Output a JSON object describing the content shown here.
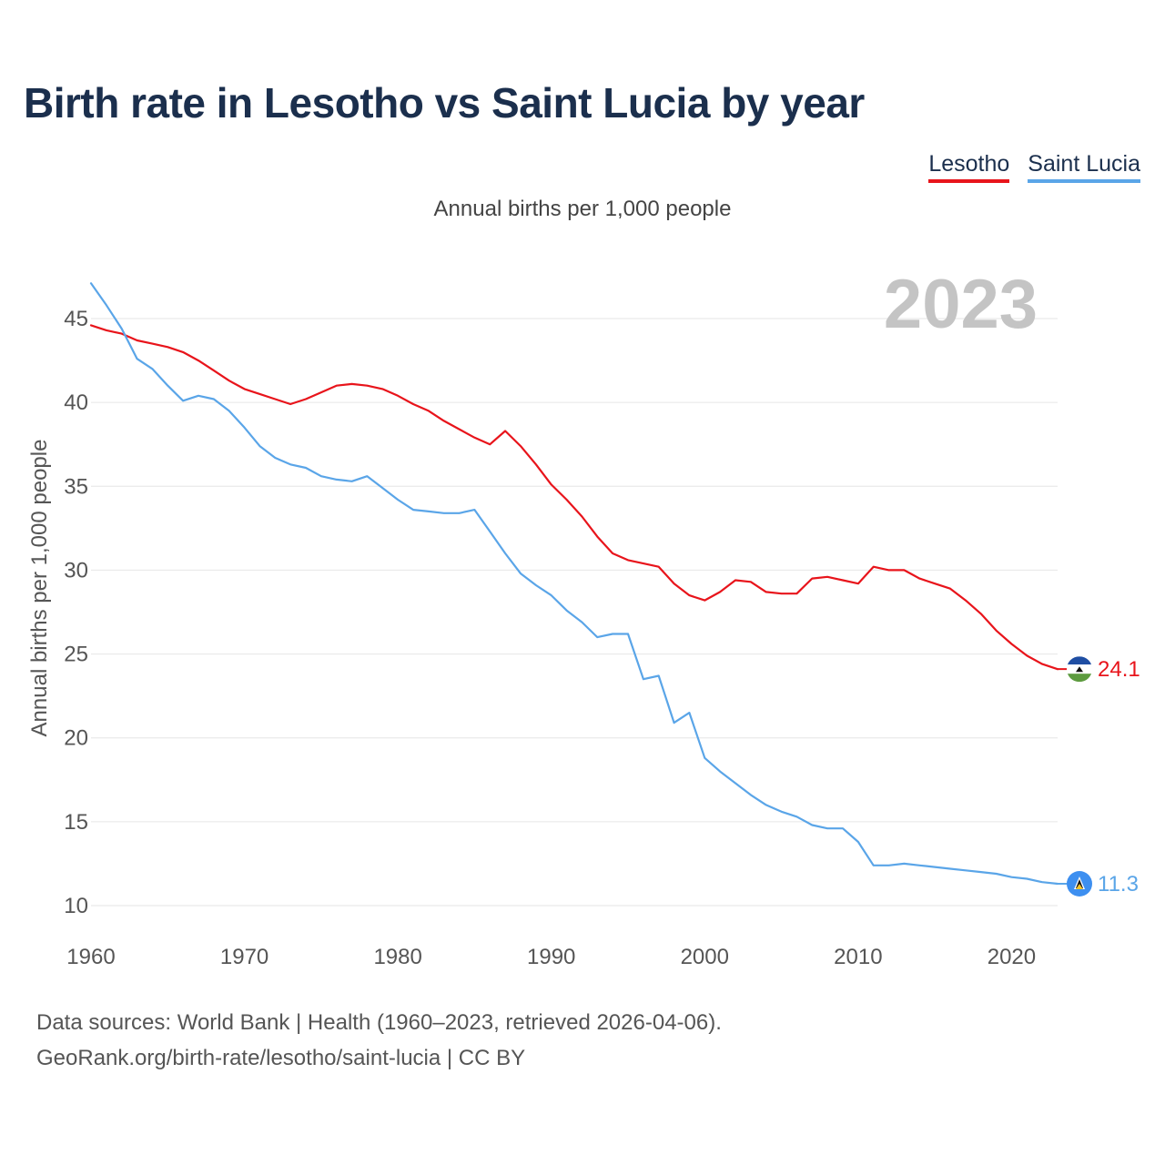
{
  "title": "Birth rate in Lesotho vs Saint Lucia by year",
  "legend": [
    {
      "label": "Lesotho",
      "color": "#e8141b"
    },
    {
      "label": "Saint Lucia",
      "color": "#5aa5e8"
    }
  ],
  "subtitle": "Annual births per 1,000 people",
  "year_watermark": "2023",
  "footer": {
    "line1": "Data sources: World Bank | Health (1960–2023, retrieved 2026-04-06).",
    "line2": "GeoRank.org/birth-rate/lesotho/saint-lucia | CC BY"
  },
  "chart_data": {
    "type": "line",
    "title": "Birth rate in Lesotho vs Saint Lucia by year",
    "xlabel": "",
    "ylabel": "Annual births per 1,000 people",
    "xlim": [
      1960,
      2023
    ],
    "ylim": [
      10,
      47.5
    ],
    "x_ticks": [
      1960,
      1970,
      1980,
      1990,
      2000,
      2010,
      2020
    ],
    "y_ticks": [
      10,
      15,
      20,
      25,
      30,
      35,
      40,
      45
    ],
    "grid": true,
    "x": [
      1960,
      1961,
      1962,
      1963,
      1964,
      1965,
      1966,
      1967,
      1968,
      1969,
      1970,
      1971,
      1972,
      1973,
      1974,
      1975,
      1976,
      1977,
      1978,
      1979,
      1980,
      1981,
      1982,
      1983,
      1984,
      1985,
      1986,
      1987,
      1988,
      1989,
      1990,
      1991,
      1992,
      1993,
      1994,
      1995,
      1996,
      1997,
      1998,
      1999,
      2000,
      2001,
      2002,
      2003,
      2004,
      2005,
      2006,
      2007,
      2008,
      2009,
      2010,
      2011,
      2012,
      2013,
      2014,
      2015,
      2016,
      2017,
      2018,
      2019,
      2020,
      2021,
      2022,
      2023
    ],
    "series": [
      {
        "name": "Lesotho",
        "color": "#e8141b",
        "end_label": "24.1",
        "values": [
          44.6,
          44.3,
          44.1,
          43.7,
          43.5,
          43.3,
          43.0,
          42.5,
          41.9,
          41.3,
          40.8,
          40.5,
          40.2,
          39.9,
          40.2,
          40.6,
          41.0,
          41.1,
          41.0,
          40.8,
          40.4,
          39.9,
          39.5,
          38.9,
          38.4,
          37.9,
          37.5,
          38.3,
          37.4,
          36.3,
          35.1,
          34.2,
          33.2,
          32.0,
          31.0,
          30.6,
          30.4,
          30.2,
          29.2,
          28.5,
          28.2,
          28.7,
          29.4,
          29.3,
          28.7,
          28.6,
          28.6,
          29.5,
          29.6,
          29.4,
          29.2,
          30.2,
          30.0,
          30.0,
          29.5,
          29.2,
          28.9,
          28.2,
          27.4,
          26.4,
          25.6,
          24.9,
          24.4,
          24.1
        ]
      },
      {
        "name": "Saint Lucia",
        "color": "#5aa5e8",
        "end_label": "11.3",
        "values": [
          47.1,
          45.8,
          44.4,
          42.6,
          42.0,
          41.0,
          40.1,
          40.4,
          40.2,
          39.5,
          38.5,
          37.4,
          36.7,
          36.3,
          36.1,
          35.6,
          35.4,
          35.3,
          35.6,
          34.9,
          34.2,
          33.6,
          33.5,
          33.4,
          33.4,
          33.6,
          32.3,
          31.0,
          29.8,
          29.1,
          28.5,
          27.6,
          26.9,
          26.0,
          26.2,
          26.2,
          23.5,
          23.7,
          20.9,
          21.5,
          18.8,
          18.0,
          17.3,
          16.6,
          16.0,
          15.6,
          15.3,
          14.8,
          14.6,
          14.6,
          13.8,
          12.4,
          12.4,
          12.5,
          12.4,
          12.3,
          12.2,
          12.1,
          12.0,
          11.9,
          11.7,
          11.6,
          11.4,
          11.3
        ]
      }
    ]
  }
}
